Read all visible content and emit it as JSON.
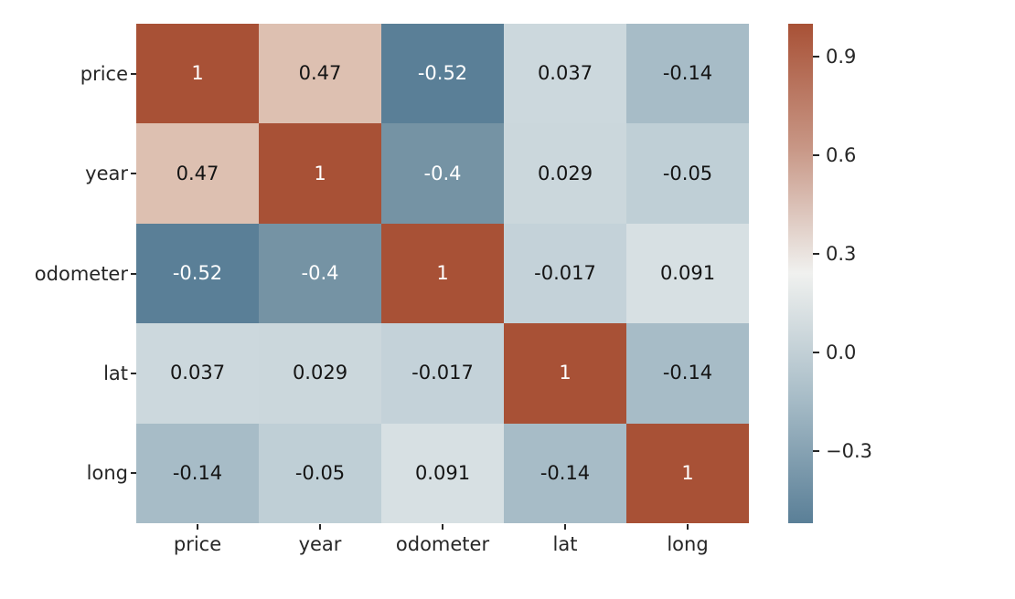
{
  "figure": {
    "background": "#ffffff",
    "axis_text_color": "#262626"
  },
  "chart_data": {
    "type": "heatmap",
    "title": "",
    "xlabel": "",
    "ylabel": "",
    "categories": [
      "price",
      "year",
      "odometer",
      "lat",
      "long"
    ],
    "values": [
      [
        1,
        0.47,
        -0.52,
        0.037,
        -0.14
      ],
      [
        0.47,
        1,
        -0.4,
        0.029,
        -0.05
      ],
      [
        -0.52,
        -0.4,
        1,
        -0.017,
        0.091
      ],
      [
        0.037,
        0.029,
        -0.017,
        1,
        -0.14
      ],
      [
        -0.14,
        -0.05,
        0.091,
        -0.14,
        1
      ]
    ],
    "cell_colors": [
      [
        "#a85136",
        "#ddc0b1",
        "#5a7f97",
        "#ccd8dd",
        "#a7bcc7"
      ],
      [
        "#ddc0b1",
        "#a85136",
        "#7593a4",
        "#cbd7dc",
        "#bfcfd6"
      ],
      [
        "#5a7f97",
        "#7593a4",
        "#a85136",
        "#c4d2d9",
        "#d7e0e3"
      ],
      [
        "#ccd8dd",
        "#cbd7dc",
        "#c4d2d9",
        "#a85136",
        "#a7bcc7"
      ],
      [
        "#a7bcc7",
        "#bfcfd6",
        "#d7e0e3",
        "#a7bcc7",
        "#a85136"
      ]
    ],
    "annotation_color_dark": "#141414",
    "annotation_color_light": "#ffffff",
    "vmin": -0.52,
    "vmax": 1.0,
    "grid_on": false,
    "legend_position": "colorbar-right",
    "colorbar": {
      "tick_values": [
        0.9,
        0.6,
        0.3,
        0.0,
        -0.3
      ],
      "tick_labels": [
        "0.9",
        "0.6",
        "0.3",
        "0.0",
        "−0.3"
      ],
      "gradient_stops": [
        {
          "pos": 0.0,
          "color": "#5a7f97"
        },
        {
          "pos": 0.25,
          "color": "#a7bcc7"
        },
        {
          "pos": 0.5,
          "color": "#f0f1ef"
        },
        {
          "pos": 0.75,
          "color": "#c89786"
        },
        {
          "pos": 1.0,
          "color": "#a85136"
        }
      ]
    }
  }
}
